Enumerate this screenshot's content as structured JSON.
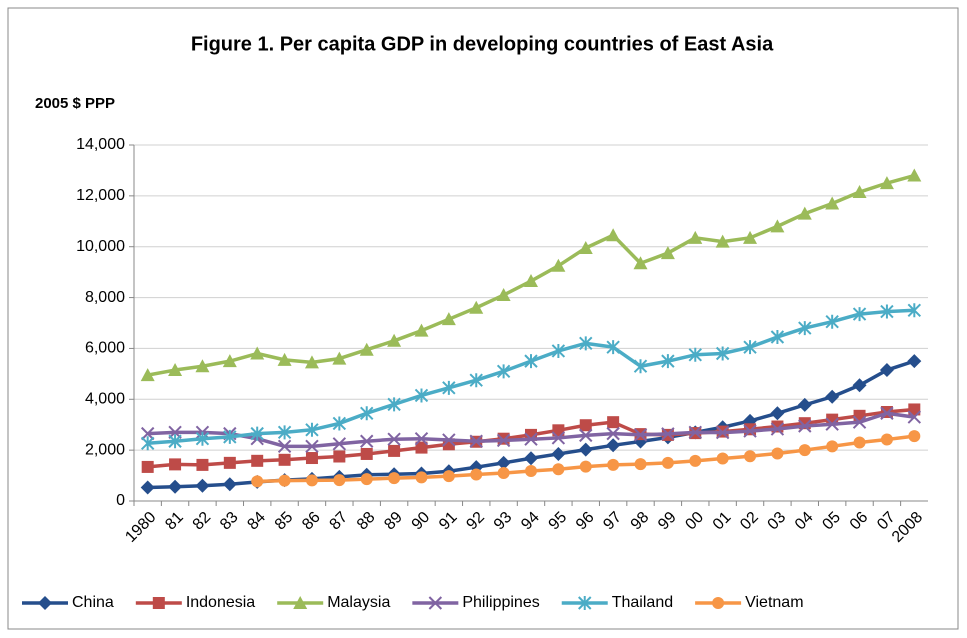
{
  "chart_data": {
    "type": "line",
    "title": "Figure 1. Per capita GDP in developing countries of East Asia",
    "y_label": "2005 $ PPP",
    "categories": [
      "1980",
      "81",
      "82",
      "83",
      "84",
      "85",
      "86",
      "87",
      "88",
      "89",
      "90",
      "91",
      "92",
      "93",
      "94",
      "95",
      "96",
      "97",
      "98",
      "99",
      "00",
      "01",
      "02",
      "03",
      "04",
      "05",
      "06",
      "07",
      "2008"
    ],
    "ylim": [
      0,
      14000
    ],
    "yticks": [
      0,
      {
        "value": 2000,
        "label": "2,000"
      },
      {
        "value": 4000,
        "label": "4,000"
      },
      {
        "value": 6000,
        "label": "6,000"
      },
      {
        "value": 8000,
        "label": "8,000"
      },
      {
        "value": 10000,
        "label": "10,000"
      },
      {
        "value": 12000,
        "label": "12,000"
      },
      {
        "value": 14000,
        "label": "14,000"
      }
    ],
    "grid": true,
    "legend": "bottom",
    "series": [
      {
        "name": "China",
        "color": "#254e8c",
        "marker": "diamond",
        "values": [
          530,
          560,
          600,
          660,
          750,
          820,
          870,
          950,
          1030,
          1050,
          1080,
          1170,
          1330,
          1500,
          1680,
          1850,
          2020,
          2190,
          2340,
          2500,
          2700,
          2900,
          3150,
          3450,
          3780,
          4100,
          4550,
          5150,
          5500
        ]
      },
      {
        "name": "Indonesia",
        "color": "#be4b48",
        "marker": "square",
        "values": [
          1340,
          1440,
          1420,
          1500,
          1580,
          1620,
          1690,
          1750,
          1850,
          1970,
          2100,
          2230,
          2330,
          2450,
          2600,
          2780,
          2980,
          3100,
          2630,
          2600,
          2670,
          2730,
          2820,
          2930,
          3060,
          3200,
          3350,
          3500,
          3600
        ]
      },
      {
        "name": "Malaysia",
        "color": "#9bbb59",
        "marker": "triangle",
        "values": [
          4950,
          5150,
          5300,
          5500,
          5800,
          5550,
          5450,
          5600,
          5950,
          6300,
          6700,
          7150,
          7600,
          8100,
          8650,
          9250,
          9950,
          10450,
          9350,
          9750,
          10350,
          10200,
          10350,
          10800,
          11300,
          11700,
          12150,
          12500,
          12800
        ]
      },
      {
        "name": "Philippines",
        "color": "#8064a2",
        "marker": "x",
        "values": [
          2650,
          2700,
          2700,
          2650,
          2450,
          2150,
          2150,
          2250,
          2350,
          2430,
          2450,
          2400,
          2350,
          2380,
          2430,
          2480,
          2580,
          2650,
          2600,
          2640,
          2700,
          2690,
          2750,
          2830,
          2950,
          3020,
          3100,
          3450,
          3300
        ]
      },
      {
        "name": "Thailand",
        "color": "#4bacc6",
        "marker": "star",
        "values": [
          2270,
          2350,
          2450,
          2520,
          2650,
          2700,
          2800,
          3050,
          3450,
          3800,
          4150,
          4450,
          4750,
          5100,
          5500,
          5900,
          6200,
          6050,
          5300,
          5500,
          5750,
          5800,
          6050,
          6450,
          6800,
          7050,
          7350,
          7450,
          7500
        ]
      },
      {
        "name": "Vietnam",
        "color": "#f79646",
        "marker": "circle",
        "values": [
          null,
          null,
          null,
          null,
          770,
          800,
          810,
          820,
          860,
          900,
          930,
          980,
          1040,
          1100,
          1180,
          1250,
          1350,
          1420,
          1450,
          1500,
          1580,
          1670,
          1760,
          1870,
          2000,
          2150,
          2300,
          2420,
          2550
        ]
      }
    ]
  }
}
